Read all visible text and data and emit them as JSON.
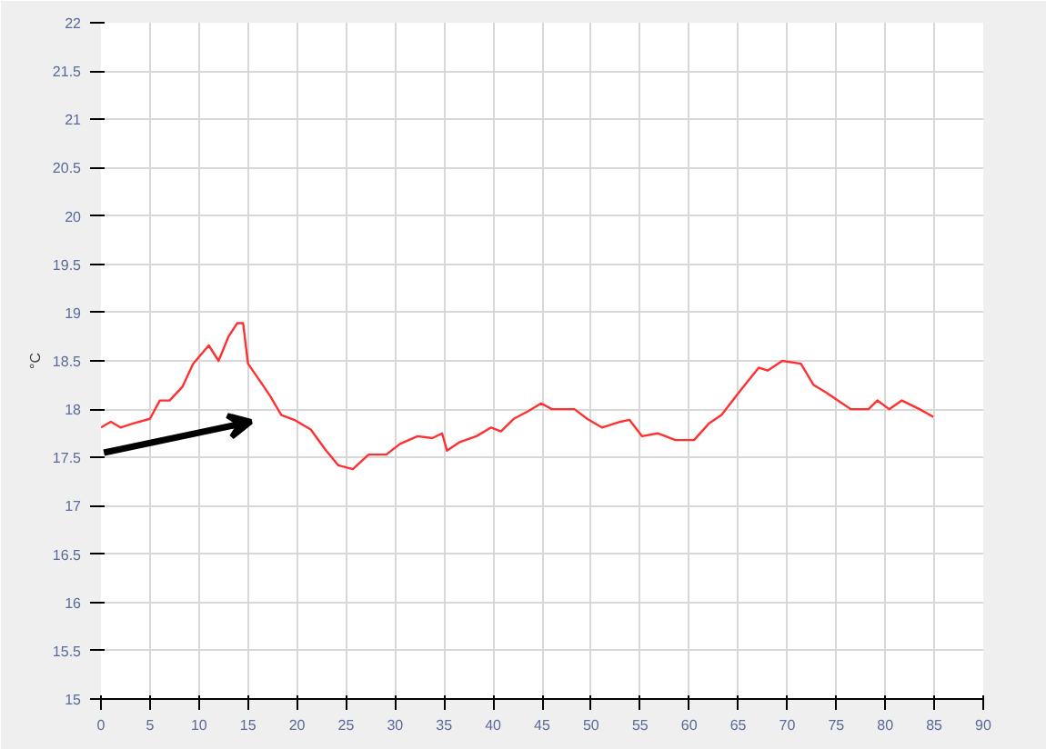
{
  "chart_data": {
    "type": "line",
    "ylabel": "°C",
    "x": [
      0,
      1,
      2,
      3.2,
      5,
      6,
      7,
      8.3,
      9.4,
      11,
      12,
      13,
      13.9,
      14.5,
      15,
      16.3,
      17.3,
      18.4,
      19.7,
      21.4,
      22.9,
      24.2,
      25.7,
      27.3,
      29.1,
      30.5,
      32.3,
      33.8,
      34.8,
      35.3,
      36.6,
      38.3,
      39.8,
      40.8,
      42.1,
      43.6,
      44.9,
      46,
      48.3,
      49.6,
      51.1,
      53,
      53.9,
      55.2,
      56.8,
      58.6,
      60.5,
      62,
      63.3,
      65.2,
      67.1,
      68,
      69.5,
      71.4,
      72.7,
      74,
      76.5,
      78.3,
      79.2,
      80.4,
      81.7,
      83.5,
      84.9
    ],
    "series": [
      {
        "color": "#ff3030",
        "values": [
          17.81,
          17.87,
          17.81,
          17.85,
          17.9,
          18.09,
          18.09,
          18.23,
          18.47,
          18.66,
          18.5,
          18.75,
          18.89,
          18.89,
          18.47,
          18.28,
          18.13,
          17.94,
          17.89,
          17.79,
          17.58,
          17.42,
          17.38,
          17.53,
          17.53,
          17.64,
          17.72,
          17.7,
          17.75,
          17.57,
          17.66,
          17.72,
          17.81,
          17.77,
          17.9,
          17.98,
          18.06,
          18.0,
          18.0,
          17.9,
          17.81,
          17.87,
          17.89,
          17.72,
          17.75,
          17.68,
          17.68,
          17.85,
          17.94,
          18.19,
          18.43,
          18.4,
          18.5,
          18.47,
          18.25,
          18.17,
          18.0,
          18.0,
          18.09,
          18.0,
          18.09,
          18.0,
          17.92
        ]
      }
    ],
    "xlim": [
      0,
      90
    ],
    "ylim": [
      15,
      22
    ],
    "xticks": [
      0,
      5,
      10,
      15,
      20,
      25,
      30,
      35,
      40,
      45,
      50,
      55,
      60,
      65,
      70,
      75,
      80,
      85,
      90
    ],
    "yticks": [
      15,
      15.5,
      16,
      16.5,
      17,
      17.5,
      18,
      18.5,
      19,
      19.5,
      20,
      20.5,
      21,
      21.5,
      22
    ],
    "grid": true,
    "line_style": "solid"
  }
}
